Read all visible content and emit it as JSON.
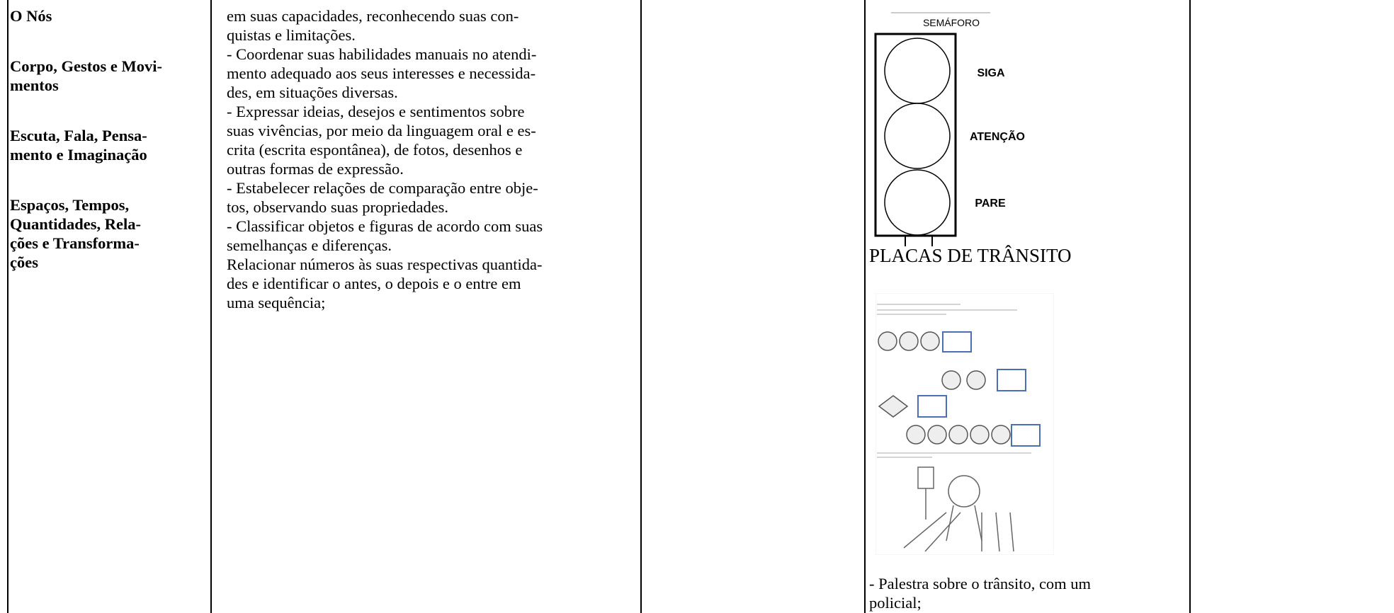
{
  "table": {
    "left_column": [
      {
        "lines": [
          "O Nós"
        ]
      },
      {
        "lines": [
          "Corpo, Gestos e Movi-",
          "mentos"
        ]
      },
      {
        "lines": [
          "Escuta, Fala, Pensa-",
          "mento e Imaginação"
        ]
      },
      {
        "lines": [
          "Espaços, Tempos,",
          "Quantidades, Rela-",
          "ções e Transforma-",
          "ções"
        ]
      }
    ],
    "objectives_lines": [
      "em suas capacidades, reconhecendo suas con-",
      "quistas e limitações.",
      "- Coordenar suas habilidades manuais no atendi-",
      "mento adequado aos seus interesses e necessida-",
      "des, em situações diversas.",
      "- Expressar ideias, desejos e sentimentos sobre",
      "suas vivências, por meio da linguagem oral e es-",
      "crita (escrita espontânea), de fotos, desenhos e",
      "outras formas de expressão.",
      "- Estabelecer relações de comparação entre obje-",
      "tos, observando suas propriedades.",
      "- Classificar objetos e figuras de acordo com suas",
      "semelhanças e diferenças.",
      "Relacionar números às suas respectivas quantida-",
      "des e identificar o antes, o depois e o entre em",
      "uma sequência;"
    ],
    "activities": {
      "traffic_light": {
        "title": "SEMÁFORO",
        "labels": [
          "SIGA",
          "ATENÇÃO",
          "PARE"
        ]
      },
      "caption": "PLACAS DE TRÂNSITO",
      "text_lines": [
        "- Palestra sobre o trânsito, com um",
        "policial;"
      ]
    }
  }
}
